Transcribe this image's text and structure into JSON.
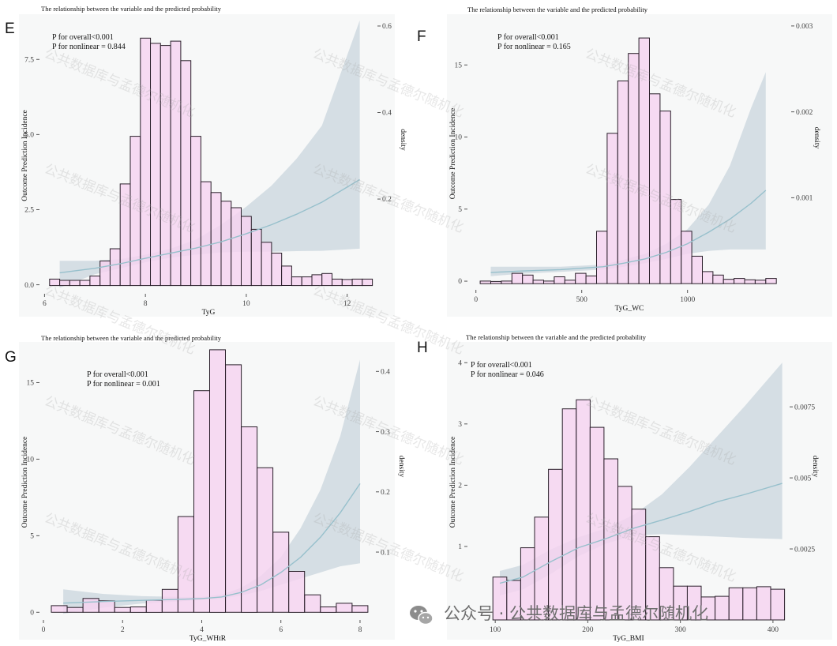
{
  "chart_data": [
    {
      "type": "bar",
      "letter": "E",
      "title": "The relationship between the variable and the predicted probability",
      "xlabel": "TyG",
      "ylabel": "Outcome Prediction Incidence",
      "y2label": "density",
      "annotations": [
        "P for overall<0.001",
        "P for nonlinear = 0.844"
      ],
      "xlim": [
        5.9,
        12.6
      ],
      "ylim": [
        -0.3,
        8.9
      ],
      "y2lim": [
        -0.019,
        0.62
      ],
      "xticks": [
        6,
        8,
        10,
        12
      ],
      "yticks": [
        0.0,
        2.5,
        5.0,
        7.5
      ],
      "ytick_labels": [
        "0.0",
        "2.5",
        "5.0",
        "7.5"
      ],
      "y2ticks": [
        0.2,
        0.4,
        0.6
      ],
      "bins": {
        "start": 6.1,
        "width": 0.2,
        "density": [
          0.015,
          0.012,
          0.012,
          0.012,
          0.022,
          0.057,
          0.085,
          0.235,
          0.345,
          0.572,
          0.56,
          0.555,
          0.565,
          0.52,
          0.345,
          0.24,
          0.215,
          0.195,
          0.18,
          0.16,
          0.13,
          0.1,
          0.075,
          0.045,
          0.02,
          0.02,
          0.025,
          0.028,
          0.015,
          0.014,
          0.015,
          0.015
        ]
      },
      "curve": {
        "x": [
          6.3,
          7.0,
          7.5,
          8.0,
          8.5,
          9.0,
          9.5,
          10.0,
          10.5,
          11.0,
          11.5,
          12.25
        ],
        "fit": [
          0.4,
          0.55,
          0.7,
          0.88,
          1.05,
          1.22,
          1.43,
          1.7,
          2.0,
          2.35,
          2.75,
          3.5
        ],
        "lower": [
          -0.1,
          0.35,
          0.55,
          0.75,
          0.9,
          1.0,
          1.08,
          1.1,
          1.1,
          1.12,
          1.13,
          1.2
        ],
        "upper": [
          0.8,
          0.8,
          0.85,
          1.0,
          1.2,
          1.5,
          2.0,
          2.6,
          3.3,
          4.2,
          5.3,
          8.8
        ]
      }
    },
    {
      "type": "bar",
      "letter": "F",
      "title": "The relationship between the variable and the predicted probability",
      "xlabel": "TyG_WC",
      "ylabel": "Outcome Prediction Incidence",
      "y2label": "density",
      "annotations": [
        "P for overall<0.001",
        "P for nonlinear = 0.165"
      ],
      "xlim": [
        -40,
        1490
      ],
      "ylim": [
        -0.6,
        18.3
      ],
      "y2lim": [
        -7.2e-05,
        0.0031
      ],
      "xticks": [
        0,
        500,
        1000
      ],
      "yticks": [
        0,
        5,
        10,
        15
      ],
      "ytick_labels": [
        "0",
        "5",
        "10",
        "15"
      ],
      "y2ticks": [
        0.001,
        0.002,
        0.003
      ],
      "bins": {
        "start": 20,
        "width": 50,
        "density": [
          3e-05,
          2.5e-05,
          3e-05,
          0.00012,
          0.0001,
          4e-05,
          3e-05,
          8e-05,
          4e-05,
          0.00012,
          9e-05,
          0.00061,
          0.00175,
          0.00236,
          0.00268,
          0.00286,
          0.00221,
          0.00201,
          0.00098,
          0.00061,
          0.00032,
          0.00014,
          0.0001,
          5e-05,
          6e-05,
          4.5e-05,
          4e-05,
          6e-05
        ]
      },
      "curve": {
        "x": [
          70,
          200,
          400,
          600,
          700,
          800,
          900,
          1000,
          1100,
          1200,
          1300,
          1370
        ],
        "fit": [
          0.6,
          0.7,
          0.8,
          1.0,
          1.25,
          1.55,
          2.0,
          2.6,
          3.4,
          4.3,
          5.4,
          6.3
        ],
        "lower": [
          0.35,
          0.5,
          0.65,
          0.8,
          1.0,
          1.25,
          1.55,
          1.9,
          2.1,
          2.2,
          2.2,
          2.2
        ],
        "upper": [
          1.0,
          1.0,
          1.0,
          1.15,
          1.5,
          1.9,
          2.6,
          3.6,
          5.3,
          8.0,
          12.0,
          14.5
        ]
      }
    },
    {
      "type": "bar",
      "letter": "G",
      "title": "The relationship between the variable and the predicted probability",
      "xlabel": "TyG_WHtR",
      "ylabel": "Outcome Prediction Incidence",
      "y2label": "density",
      "annotations": [
        "P for overall<0.001",
        "P for nonlinear = 0.001"
      ],
      "xlim": [
        -0.1,
        8.4
      ],
      "ylim": [
        -0.5,
        17.5
      ],
      "y2lim": [
        -0.0127,
        0.445
      ],
      "xticks": [
        0,
        2,
        4,
        6,
        8
      ],
      "yticks": [
        0,
        5,
        10,
        15
      ],
      "ytick_labels": [
        "0",
        "5",
        "10",
        "15"
      ],
      "y2ticks": [
        0.1,
        0.2,
        0.3,
        0.4
      ],
      "bins": {
        "start": 0.2,
        "width": 0.4,
        "density": [
          0.011,
          0.008,
          0.023,
          0.019,
          0.008,
          0.009,
          0.02,
          0.038,
          0.159,
          0.368,
          0.436,
          0.411,
          0.308,
          0.24,
          0.133,
          0.068,
          0.029,
          0.009,
          0.015,
          0.011
        ]
      },
      "curve": {
        "x": [
          0.5,
          1.5,
          2.5,
          3.5,
          4.0,
          4.5,
          5.0,
          5.5,
          6.0,
          6.5,
          7.0,
          7.5,
          8.0
        ],
        "fit": [
          0.6,
          0.7,
          0.78,
          0.85,
          0.9,
          1.0,
          1.3,
          1.8,
          2.6,
          3.6,
          4.9,
          6.5,
          8.4
        ],
        "lower": [
          -0.1,
          0.3,
          0.58,
          0.72,
          0.8,
          0.9,
          1.1,
          1.4,
          1.8,
          2.2,
          2.6,
          3.0,
          3.2
        ],
        "upper": [
          1.5,
          1.2,
          1.05,
          1.0,
          1.0,
          1.15,
          1.6,
          2.4,
          3.6,
          5.5,
          8.0,
          11.5,
          16.5
        ]
      }
    },
    {
      "type": "bar",
      "letter": "H",
      "title": "The relationship between the variable and the predicted probability",
      "xlabel": "TyG_BMI",
      "ylabel": "Outcome Prediction Incidence",
      "y2label": "density",
      "annotations": [
        "P for overall<0.001",
        "P for nonlinear = 0.046"
      ],
      "xlim": [
        70,
        418
      ],
      "ylim": [
        -0.2,
        4.3
      ],
      "y2lim": [
        0.0,
        0.0097
      ],
      "xticks": [
        100,
        200,
        300,
        400
      ],
      "yticks": [
        1,
        2,
        3,
        4
      ],
      "ytick_labels": [
        "1",
        "2",
        "3",
        "4"
      ],
      "y2ticks": [
        0.0025,
        0.005,
        0.0075
      ],
      "bins": {
        "start": 97.5,
        "width": 15,
        "density": [
          0.00151,
          0.00139,
          0.00254,
          0.00362,
          0.0053,
          0.00743,
          0.00775,
          0.00678,
          0.00567,
          0.0047,
          0.0039,
          0.00293,
          0.00184,
          0.00119,
          0.00119,
          0.00081,
          0.00083,
          0.00113,
          0.00113,
          0.00117,
          0.00108
        ]
      },
      "curve": {
        "x": [
          105,
          130,
          160,
          190,
          220,
          250,
          280,
          310,
          340,
          370,
          410
        ],
        "fit": [
          0.4,
          0.5,
          0.75,
          0.98,
          1.13,
          1.3,
          1.43,
          1.57,
          1.73,
          1.85,
          2.03
        ],
        "lower": [
          0.2,
          0.3,
          0.55,
          0.84,
          1.05,
          1.18,
          1.2,
          1.18,
          1.16,
          1.14,
          1.12
        ],
        "upper": [
          0.6,
          0.7,
          0.95,
          1.15,
          1.3,
          1.52,
          1.85,
          2.3,
          2.8,
          3.3,
          4.0
        ]
      }
    }
  ],
  "watermark": "公共数据库与孟德尔随机化",
  "footer": {
    "text": "公众号 · 公共数据库与孟德尔随机化",
    "icon": "wechat-icon"
  },
  "colors": {
    "bar_fill": "#f5d3f0",
    "bar_stroke": "#2a1f2a",
    "band": "#c9d6dd",
    "line": "#97c0cc",
    "panel_bg": "#f7f8f8"
  }
}
